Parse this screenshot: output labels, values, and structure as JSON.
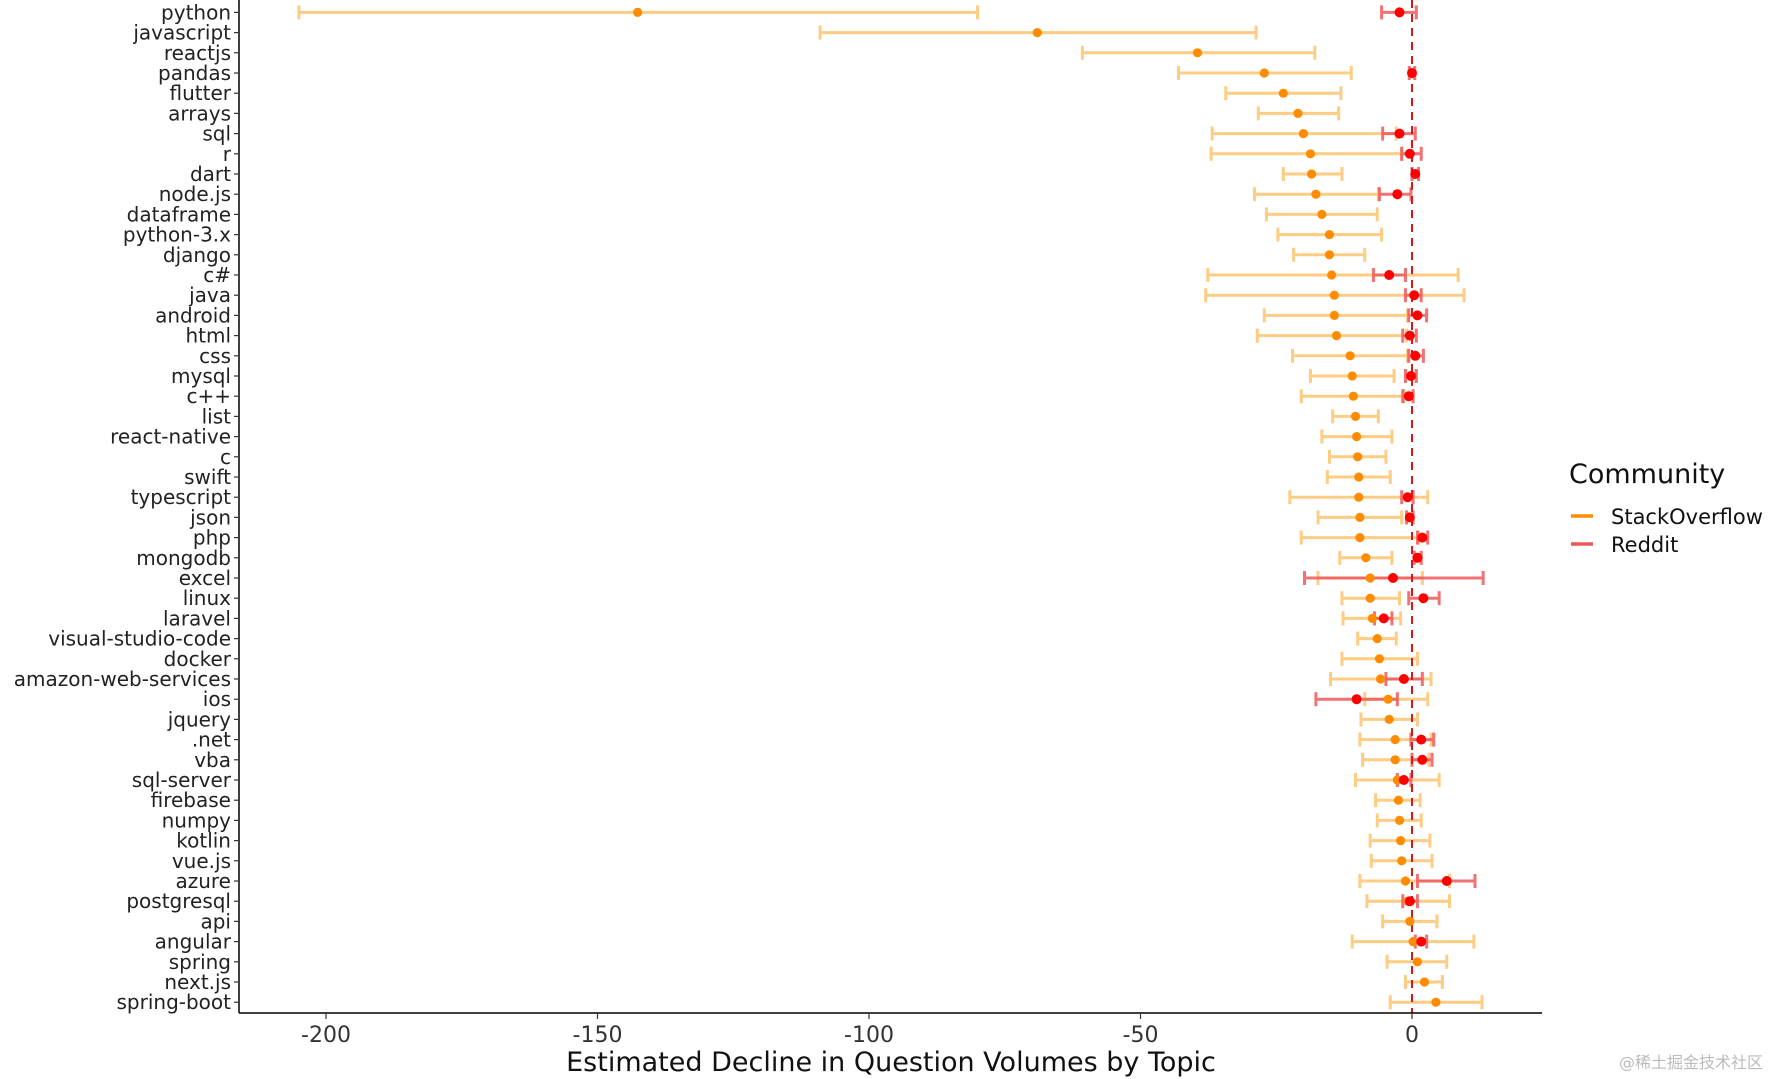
{
  "chart_data": {
    "type": "errorbar",
    "title": "",
    "xlabel": "Estimated Decline in Question Volumes by Topic",
    "ylabel": "",
    "xlim": [
      -216,
      24
    ],
    "xticks": [
      -200,
      -150,
      -100,
      -50,
      0
    ],
    "xtick_labels": [
      "-200",
      "-150",
      "-100",
      "-50",
      "0"
    ],
    "reference_line": {
      "x": 0,
      "style": "dashed",
      "color": "#d7191c"
    },
    "grid": false,
    "legend": {
      "title": "Community",
      "placement": "right"
    },
    "categories": [
      "python",
      "javascript",
      "reactjs",
      "pandas",
      "flutter",
      "arrays",
      "sql",
      "r",
      "dart",
      "node.js",
      "dataframe",
      "python-3.x",
      "django",
      "c#",
      "java",
      "android",
      "html",
      "css",
      "mysql",
      "c++",
      "list",
      "react-native",
      "c",
      "swift",
      "typescript",
      "json",
      "php",
      "mongodb",
      "excel",
      "linux",
      "laravel",
      "visual-studio-code",
      "docker",
      "amazon-web-services",
      "ios",
      "jquery",
      ".net",
      "vba",
      "sql-server",
      "firebase",
      "numpy",
      "kotlin",
      "vue.js",
      "azure",
      "postgresql",
      "api",
      "angular",
      "spring",
      "next.js",
      "spring-boot"
    ],
    "series": [
      {
        "name": "StackOverflow",
        "color": "#ff8c00",
        "bar_color": "#ffc46e",
        "estimate": [
          -142.6,
          -69,
          -39.5,
          -27.2,
          -23.7,
          -21,
          -20,
          -18.7,
          -18.5,
          -17.7,
          -16.6,
          -15.2,
          -15.2,
          -14.8,
          -14.3,
          -14.3,
          -13.9,
          -11.4,
          -11,
          -10.8,
          -10.4,
          -10.2,
          -10,
          -9.8,
          -9.8,
          -9.6,
          -9.6,
          -8.5,
          -7.7,
          -7.7,
          -7.3,
          -6.4,
          -6,
          -5.8,
          -4.4,
          -4.2,
          -3.1,
          -3.1,
          -2.7,
          -2.5,
          -2.3,
          -2.1,
          -1.9,
          -1.2,
          -0.8,
          -0.4,
          0.2,
          1,
          2.3,
          4.4
        ],
        "lower": [
          -205,
          -109,
          -60.7,
          -43,
          -34.3,
          -28.3,
          -36.8,
          -37,
          -23.7,
          -29,
          -26.8,
          -24.7,
          -21.8,
          -37.6,
          -38,
          -27.2,
          -28.5,
          -22,
          -18.7,
          -20.4,
          -14.6,
          -16.6,
          -15.2,
          -15.6,
          -22.5,
          -17.3,
          -20.4,
          -13.3,
          -17.3,
          -12.9,
          -12.7,
          -10,
          -12.9,
          -15,
          -8.7,
          -9.4,
          -9.6,
          -9.1,
          -10.4,
          -6.7,
          -6.4,
          -7.7,
          -7.5,
          -9.6,
          -8.3,
          -5.4,
          -11,
          -4.6,
          -1.2,
          -4
        ],
        "upper": [
          -80,
          -28.7,
          -17.9,
          -11.2,
          -13.1,
          -13.5,
          -2.9,
          -1.9,
          -12.9,
          -6.2,
          -6.4,
          -5.6,
          -8.7,
          8.5,
          9.6,
          -0.8,
          -1,
          -0.8,
          -3.3,
          -1.5,
          -6.2,
          -3.7,
          -4.8,
          -4,
          2.9,
          -1.9,
          1.2,
          -3.7,
          1.9,
          -2.3,
          -2.1,
          -2.9,
          1,
          3.5,
          2.9,
          1,
          3.5,
          3.1,
          5,
          1.5,
          1.7,
          3.3,
          3.7,
          6.9,
          6.9,
          4.6,
          11.4,
          6.4,
          5.6,
          12.9
        ]
      },
      {
        "name": "Reddit",
        "color": "#ff0000",
        "bar_color": "#ee5a5a",
        "estimate": [
          -2.3,
          null,
          null,
          0,
          null,
          null,
          -2.3,
          -0.4,
          0.6,
          -2.7,
          null,
          null,
          null,
          -4.2,
          0.4,
          1,
          -0.4,
          0.6,
          -0.2,
          -0.6,
          null,
          null,
          null,
          null,
          -0.8,
          -0.4,
          1.9,
          1,
          -3.5,
          2.1,
          -5.2,
          null,
          null,
          -1.5,
          -10.2,
          null,
          1.7,
          1.9,
          -1.5,
          null,
          null,
          null,
          null,
          6.4,
          -0.4,
          null,
          1.7,
          null,
          null,
          null
        ],
        "lower": [
          -5.6,
          null,
          null,
          -0.5,
          null,
          null,
          -5.4,
          -1.9,
          0,
          -6,
          null,
          null,
          null,
          -7.1,
          -1.2,
          -0.6,
          -1.7,
          -0.6,
          -1.2,
          -1.7,
          null,
          null,
          null,
          null,
          -1.9,
          -1,
          1,
          0.4,
          -19.8,
          -0.6,
          -6.9,
          null,
          null,
          -4.8,
          -17.7,
          null,
          -0.2,
          0,
          -2.7,
          null,
          null,
          null,
          null,
          1,
          -1.7,
          null,
          0.6,
          null,
          null,
          null
        ],
        "upper": [
          0.8,
          null,
          null,
          0.5,
          null,
          null,
          0.6,
          1.7,
          1.2,
          -0.2,
          null,
          null,
          null,
          -1.2,
          1.7,
          2.7,
          0.8,
          2.1,
          0.8,
          0.2,
          null,
          null,
          null,
          null,
          0.2,
          0.2,
          2.9,
          1.7,
          13.1,
          5,
          -3.7,
          null,
          null,
          1.9,
          -2.7,
          null,
          4,
          3.7,
          -0.2,
          null,
          null,
          null,
          null,
          11.6,
          1,
          null,
          2.7,
          null,
          null,
          null
        ]
      }
    ]
  },
  "watermark": "@稀土掘金技术社区"
}
